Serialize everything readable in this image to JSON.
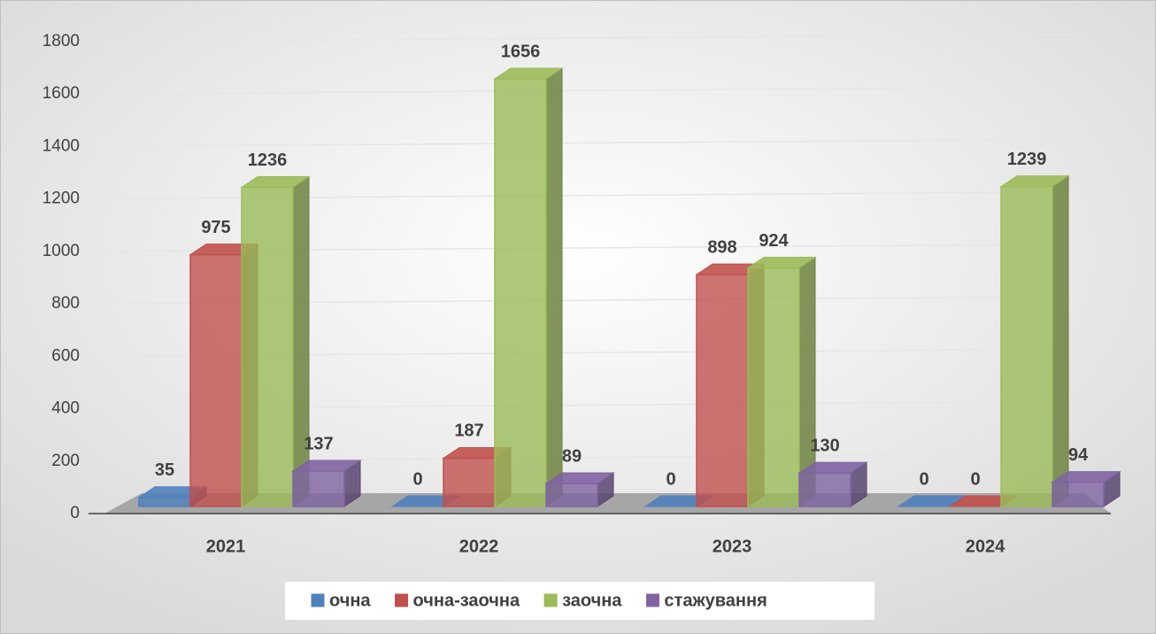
{
  "chart_data": {
    "type": "bar3d",
    "categories": [
      "2021",
      "2022",
      "2023",
      "2024"
    ],
    "series": [
      {
        "name": "очна",
        "color": "#4f81bd",
        "values": [
          35,
          0,
          0,
          0
        ]
      },
      {
        "name": "очна-заочна",
        "color": "#c0504d",
        "values": [
          975,
          187,
          898,
          0
        ]
      },
      {
        "name": "заочна",
        "color": "#9bbb59",
        "values": [
          1236,
          1656,
          924,
          1239
        ]
      },
      {
        "name": "стажування",
        "color": "#8064a2",
        "values": [
          137,
          89,
          130,
          94
        ]
      }
    ],
    "ylim": [
      0,
      1800
    ],
    "yticks": [
      0,
      200,
      400,
      600,
      800,
      1000,
      1200,
      1400,
      1600,
      1800
    ],
    "grid": true,
    "legend": "bottom"
  }
}
